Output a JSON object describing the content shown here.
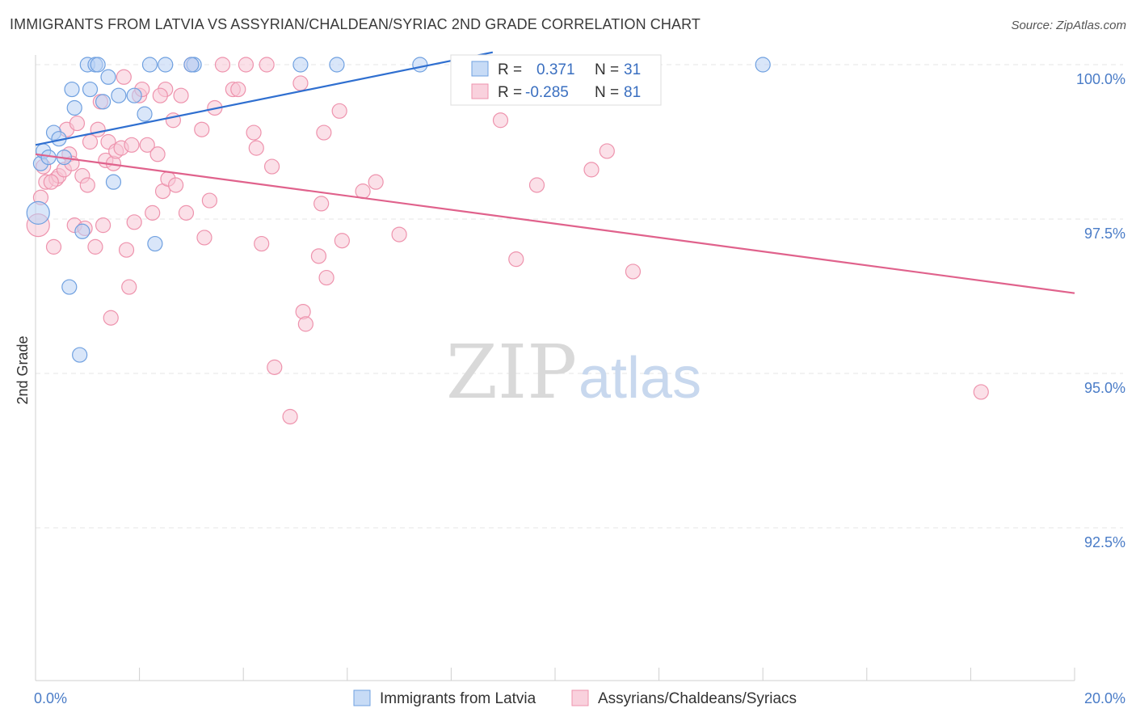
{
  "header": {
    "title": "IMMIGRANTS FROM LATVIA VS ASSYRIAN/CHALDEAN/SYRIAC 2ND GRADE CORRELATION CHART",
    "source": "Source: ZipAtlas.com"
  },
  "watermark": {
    "zip": "ZIP",
    "atlas": "atlas"
  },
  "colors": {
    "blue": "#6fa0e0",
    "blue_fill": "#b9d2f4",
    "blue_line": "#2f6fd0",
    "pink": "#ee93ad",
    "pink_fill": "#f7c6d5",
    "pink_line": "#e0628c",
    "tick_label": "#4a7cc7",
    "grid": "#e6e6e6"
  },
  "chart_data": {
    "type": "scatter",
    "title": "IMMIGRANTS FROM LATVIA VS ASSYRIAN/CHALDEAN/SYRIAC 2ND GRADE CORRELATION CHART",
    "xlabel": "",
    "ylabel": "2nd Grade",
    "xlim": [
      0,
      20
    ],
    "ylim": [
      90.5,
      100.25
    ],
    "x_tick_labels": [
      "0.0%",
      "20.0%"
    ],
    "y_ticks": [
      100.0,
      97.5,
      95.0,
      92.5
    ],
    "y_tick_labels": [
      "100.0%",
      "97.5%",
      "95.0%",
      "92.5%"
    ],
    "grid": true,
    "legend_position": "top-center",
    "stats": [
      {
        "r_label": "R =",
        "r_value": "0.371",
        "n_label": "N =",
        "n_value": "31"
      },
      {
        "r_label": "R =",
        "r_value": "-0.285",
        "n_label": "N =",
        "n_value": "81"
      }
    ],
    "series": [
      {
        "name": "Immigrants from Latvia",
        "color": "blue",
        "trend": {
          "x": [
            0.0,
            8.8
          ],
          "y": [
            98.7,
            100.2
          ]
        },
        "points": [
          {
            "x": 0.1,
            "y": 98.4
          },
          {
            "x": 0.15,
            "y": 98.6
          },
          {
            "x": 0.35,
            "y": 98.9
          },
          {
            "x": 0.45,
            "y": 98.8
          },
          {
            "x": 0.55,
            "y": 98.5
          },
          {
            "x": 0.7,
            "y": 99.6
          },
          {
            "x": 0.75,
            "y": 99.3
          },
          {
            "x": 1.0,
            "y": 100.0
          },
          {
            "x": 1.05,
            "y": 99.6
          },
          {
            "x": 1.15,
            "y": 100.0
          },
          {
            "x": 1.2,
            "y": 100.0
          },
          {
            "x": 1.3,
            "y": 99.4
          },
          {
            "x": 1.4,
            "y": 99.8
          },
          {
            "x": 1.5,
            "y": 98.1
          },
          {
            "x": 1.6,
            "y": 99.5
          },
          {
            "x": 1.9,
            "y": 99.5
          },
          {
            "x": 2.1,
            "y": 99.2
          },
          {
            "x": 2.2,
            "y": 100.0
          },
          {
            "x": 2.5,
            "y": 100.0
          },
          {
            "x": 3.05,
            "y": 100.0
          },
          {
            "x": 0.05,
            "y": 97.6
          },
          {
            "x": 0.9,
            "y": 97.3
          },
          {
            "x": 2.3,
            "y": 97.1
          },
          {
            "x": 0.65,
            "y": 96.4
          },
          {
            "x": 0.85,
            "y": 95.3
          },
          {
            "x": 5.1,
            "y": 100.0
          },
          {
            "x": 5.8,
            "y": 100.0
          },
          {
            "x": 7.4,
            "y": 100.0
          },
          {
            "x": 14.0,
            "y": 100.0
          },
          {
            "x": 0.25,
            "y": 98.5
          },
          {
            "x": 3.0,
            "y": 100.0
          }
        ]
      },
      {
        "name": "Assyrians/Chaldeans/Syriacs",
        "color": "pink",
        "trend": {
          "x": [
            0.0,
            20.0
          ],
          "y": [
            98.55,
            96.3
          ]
        },
        "points": [
          {
            "x": 0.05,
            "y": 97.4
          },
          {
            "x": 0.1,
            "y": 97.85
          },
          {
            "x": 0.2,
            "y": 98.1
          },
          {
            "x": 0.35,
            "y": 97.05
          },
          {
            "x": 0.4,
            "y": 98.15
          },
          {
            "x": 0.45,
            "y": 98.2
          },
          {
            "x": 0.55,
            "y": 98.3
          },
          {
            "x": 0.6,
            "y": 98.95
          },
          {
            "x": 0.65,
            "y": 98.55
          },
          {
            "x": 0.7,
            "y": 98.4
          },
          {
            "x": 0.75,
            "y": 97.4
          },
          {
            "x": 0.8,
            "y": 99.05
          },
          {
            "x": 0.9,
            "y": 98.2
          },
          {
            "x": 0.95,
            "y": 97.35
          },
          {
            "x": 1.0,
            "y": 98.05
          },
          {
            "x": 1.05,
            "y": 98.75
          },
          {
            "x": 1.15,
            "y": 97.05
          },
          {
            "x": 1.2,
            "y": 98.95
          },
          {
            "x": 1.25,
            "y": 99.4
          },
          {
            "x": 1.3,
            "y": 97.4
          },
          {
            "x": 1.35,
            "y": 98.45
          },
          {
            "x": 1.4,
            "y": 98.75
          },
          {
            "x": 1.45,
            "y": 95.9
          },
          {
            "x": 1.5,
            "y": 98.4
          },
          {
            "x": 1.55,
            "y": 98.6
          },
          {
            "x": 1.65,
            "y": 98.65
          },
          {
            "x": 1.7,
            "y": 99.8
          },
          {
            "x": 1.75,
            "y": 97.0
          },
          {
            "x": 1.8,
            "y": 96.4
          },
          {
            "x": 1.85,
            "y": 98.7
          },
          {
            "x": 1.9,
            "y": 97.45
          },
          {
            "x": 2.0,
            "y": 99.5
          },
          {
            "x": 2.05,
            "y": 99.6
          },
          {
            "x": 2.15,
            "y": 98.7
          },
          {
            "x": 2.25,
            "y": 97.6
          },
          {
            "x": 2.35,
            "y": 98.55
          },
          {
            "x": 2.45,
            "y": 97.95
          },
          {
            "x": 2.5,
            "y": 99.6
          },
          {
            "x": 2.55,
            "y": 98.15
          },
          {
            "x": 2.65,
            "y": 99.1
          },
          {
            "x": 2.7,
            "y": 98.05
          },
          {
            "x": 2.8,
            "y": 99.5
          },
          {
            "x": 2.9,
            "y": 97.6
          },
          {
            "x": 3.0,
            "y": 100.0
          },
          {
            "x": 3.2,
            "y": 98.95
          },
          {
            "x": 3.25,
            "y": 97.2
          },
          {
            "x": 3.35,
            "y": 97.8
          },
          {
            "x": 3.45,
            "y": 99.3
          },
          {
            "x": 3.6,
            "y": 100.0
          },
          {
            "x": 3.8,
            "y": 99.6
          },
          {
            "x": 3.9,
            "y": 99.6
          },
          {
            "x": 4.05,
            "y": 100.0
          },
          {
            "x": 4.2,
            "y": 98.9
          },
          {
            "x": 4.25,
            "y": 98.65
          },
          {
            "x": 4.35,
            "y": 97.1
          },
          {
            "x": 4.45,
            "y": 100.0
          },
          {
            "x": 4.55,
            "y": 98.35
          },
          {
            "x": 4.6,
            "y": 95.1
          },
          {
            "x": 4.9,
            "y": 94.3
          },
          {
            "x": 5.1,
            "y": 99.7
          },
          {
            "x": 5.15,
            "y": 96.0
          },
          {
            "x": 5.2,
            "y": 95.8
          },
          {
            "x": 5.45,
            "y": 96.9
          },
          {
            "x": 5.5,
            "y": 97.75
          },
          {
            "x": 5.55,
            "y": 98.9
          },
          {
            "x": 5.6,
            "y": 96.55
          },
          {
            "x": 5.85,
            "y": 99.25
          },
          {
            "x": 5.9,
            "y": 97.15
          },
          {
            "x": 6.3,
            "y": 97.95
          },
          {
            "x": 6.55,
            "y": 98.1
          },
          {
            "x": 7.0,
            "y": 97.25
          },
          {
            "x": 8.95,
            "y": 99.1
          },
          {
            "x": 9.25,
            "y": 96.85
          },
          {
            "x": 9.65,
            "y": 98.05
          },
          {
            "x": 10.7,
            "y": 98.3
          },
          {
            "x": 11.0,
            "y": 98.6
          },
          {
            "x": 11.5,
            "y": 96.65
          },
          {
            "x": 18.2,
            "y": 94.7
          },
          {
            "x": 0.15,
            "y": 98.35
          },
          {
            "x": 0.3,
            "y": 98.1
          },
          {
            "x": 2.4,
            "y": 99.5
          }
        ]
      }
    ]
  }
}
